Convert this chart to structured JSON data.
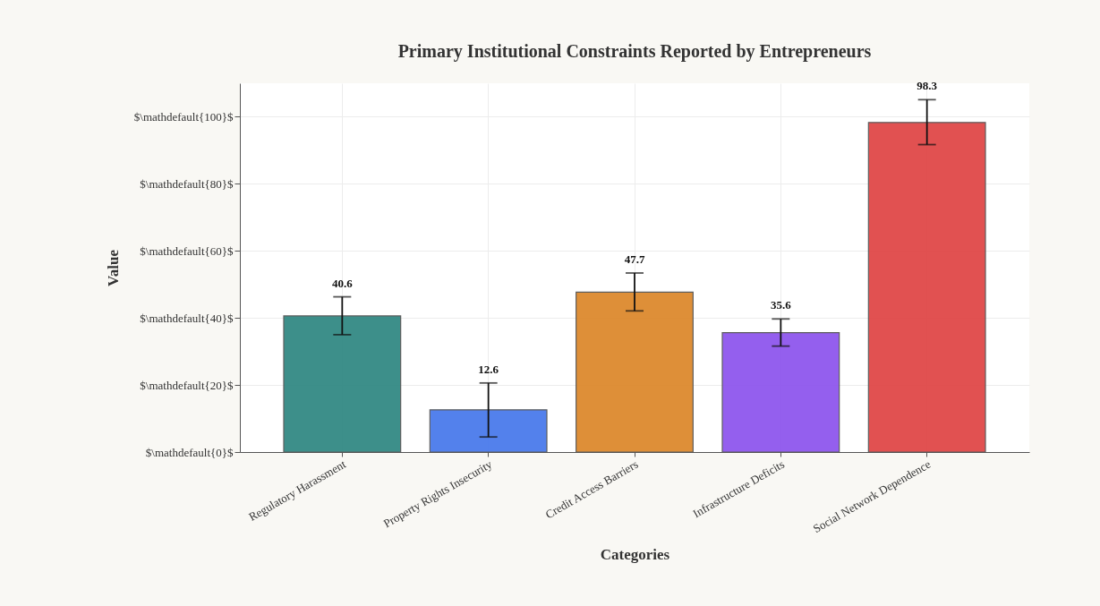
{
  "chart_data": {
    "type": "bar",
    "title": "Primary Institutional Constraints Reported by Entrepreneurs",
    "xlabel": "Categories",
    "ylabel": "Value",
    "categories": [
      "Regulatory Harassment",
      "Property Rights Insecurity",
      "Credit Access Barriers",
      "Infrastructure Deficits",
      "Social Network Dependence"
    ],
    "values": [
      40.6,
      12.6,
      47.7,
      35.6,
      98.3
    ],
    "colors": [
      "#338a84",
      "#4a7bec",
      "#dd8a2e",
      "#8f57ee",
      "#e04848"
    ],
    "errors": [
      [
        35.0,
        46.3
      ],
      [
        4.5,
        20.6
      ],
      [
        42.1,
        53.4
      ],
      [
        31.6,
        39.7
      ],
      [
        91.7,
        105.1
      ]
    ],
    "data_labels": true,
    "ylim": [
      0,
      110
    ],
    "yticks": [
      {
        "value": 0,
        "label": "$\\mathdefault{0}$"
      },
      {
        "value": 20,
        "label": "$\\mathdefault{20}$"
      },
      {
        "value": 40,
        "label": "$\\mathdefault{40}$"
      },
      {
        "value": 60,
        "label": "$\\mathdefault{60}$"
      },
      {
        "value": 80,
        "label": "$\\mathdefault{80}$"
      },
      {
        "value": 100,
        "label": "$\\mathdefault{100}$"
      }
    ],
    "grid": true
  }
}
